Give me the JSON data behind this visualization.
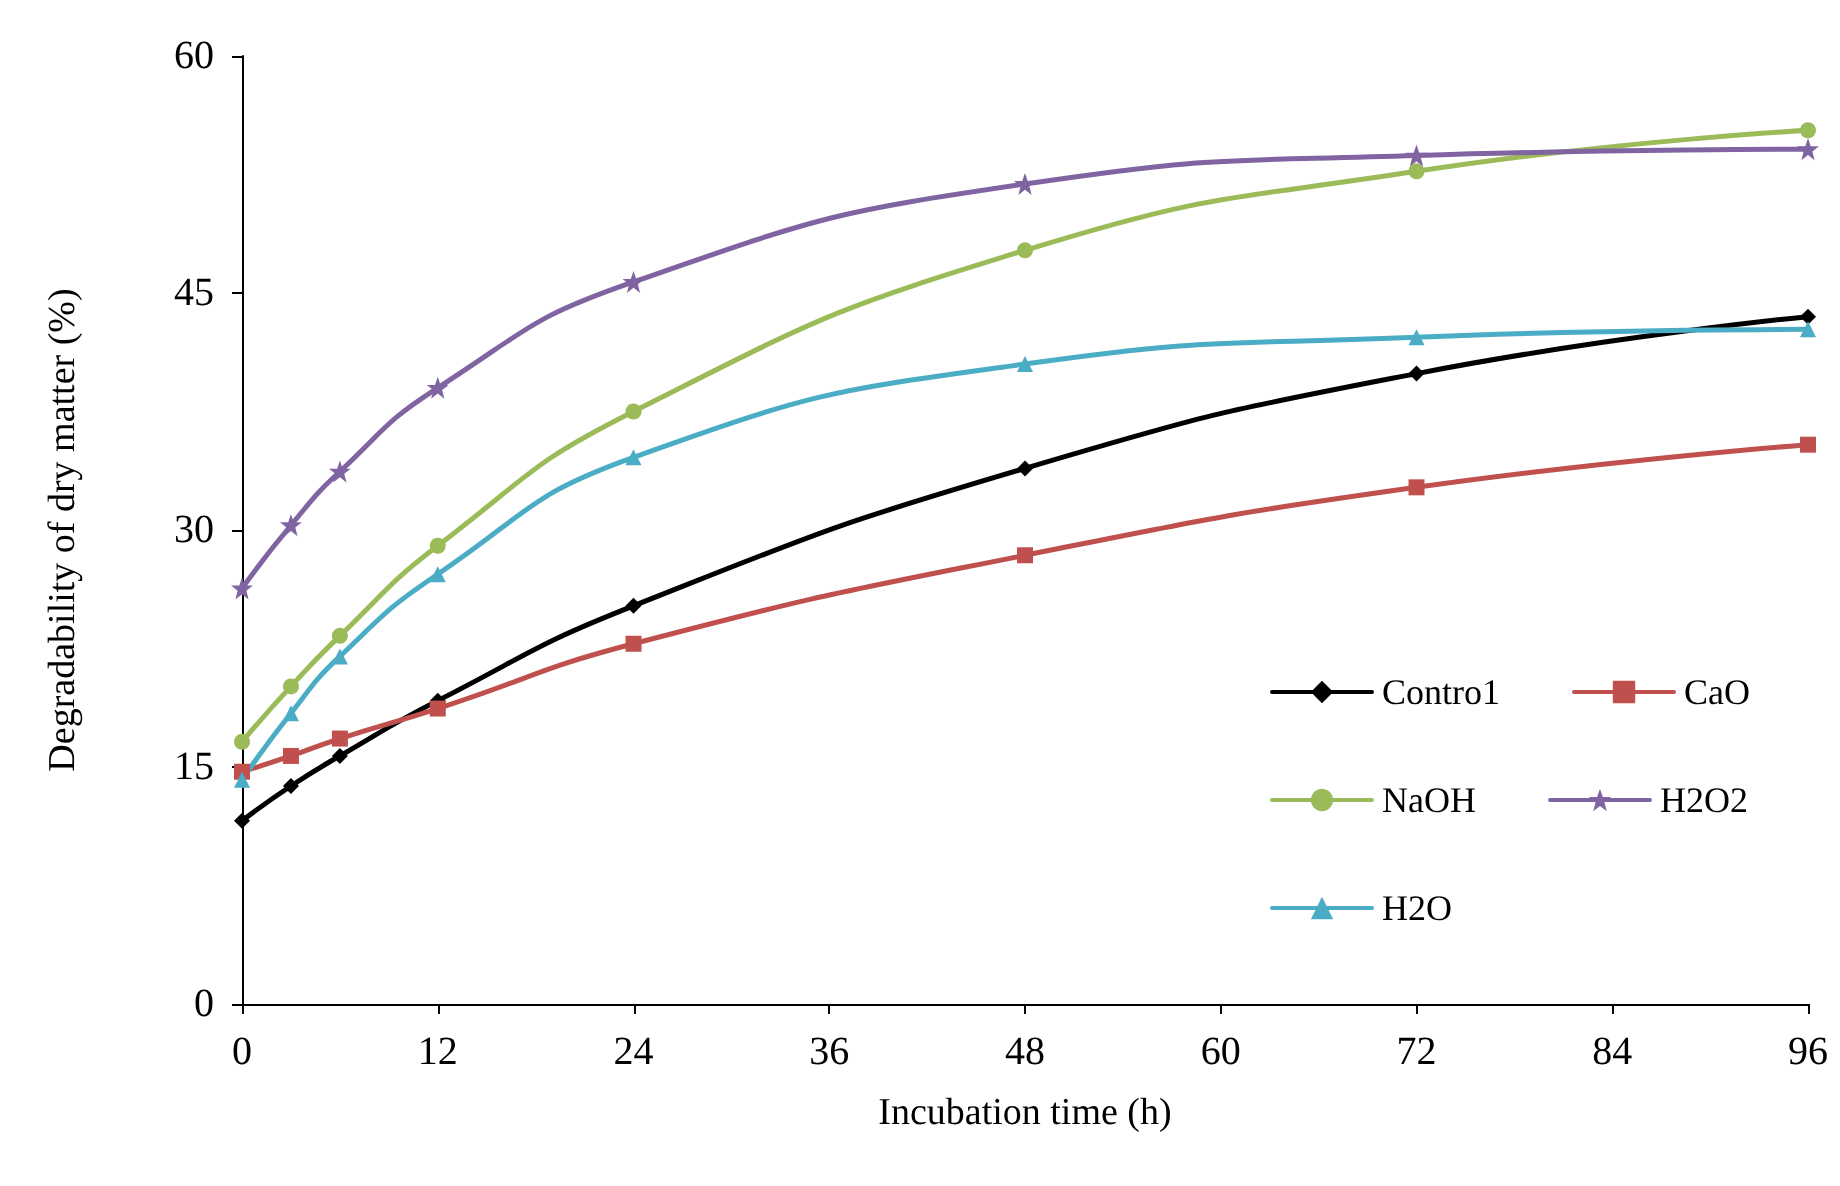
{
  "chart_data": {
    "type": "line",
    "xlabel": "Incubation time (h)",
    "ylabel": "Degradability of dry matter (%)",
    "x": [
      0,
      3,
      6,
      12,
      24,
      48,
      72,
      96
    ],
    "xlim": [
      0,
      96
    ],
    "xticks": [
      0,
      12,
      24,
      36,
      48,
      60,
      72,
      84,
      96
    ],
    "ylim": [
      0,
      60
    ],
    "yticks": [
      0,
      15,
      30,
      45,
      60
    ],
    "grid": false,
    "legend": "bottom right",
    "line_style": "solid",
    "series": [
      {
        "name": "Contro1",
        "color": "#000000",
        "marker": "diamond",
        "values": [
          11.6,
          13.8,
          15.7,
          19.2,
          25.2,
          33.9,
          39.9,
          43.5
        ]
      },
      {
        "name": "CaO",
        "color": "#c0504d",
        "marker": "square",
        "values": [
          14.7,
          15.7,
          16.8,
          18.7,
          22.8,
          28.4,
          32.7,
          35.4
        ]
      },
      {
        "name": "NaOH",
        "color": "#9bbb59",
        "marker": "circle",
        "values": [
          16.6,
          20.1,
          23.3,
          29.0,
          37.5,
          47.7,
          52.7,
          55.3
        ]
      },
      {
        "name": "H2O2",
        "color": "#8064a2",
        "marker": "star",
        "values": [
          26.3,
          30.3,
          33.7,
          39.0,
          45.7,
          51.9,
          53.7,
          54.1
        ]
      },
      {
        "name": "H2O",
        "color": "#4bacc6",
        "marker": "triangle",
        "values": [
          14.2,
          18.4,
          22.0,
          27.2,
          34.6,
          40.5,
          42.2,
          42.7
        ]
      }
    ]
  }
}
